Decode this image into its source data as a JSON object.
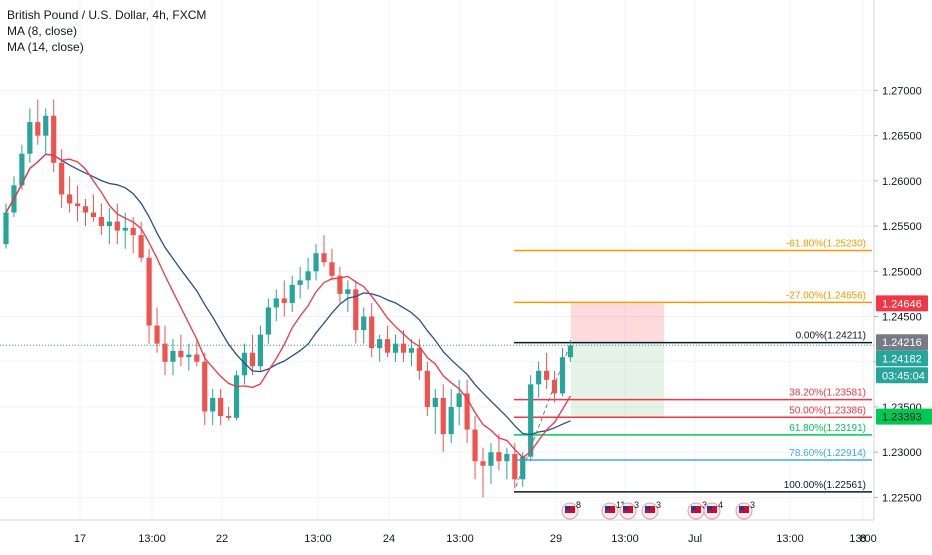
{
  "chart_data": {
    "type": "candlestick",
    "title": "British Pound / U.S. Dollar, 4h, FXCM",
    "indicators": [
      {
        "name": "MA (8, close)",
        "color": "#f23645"
      },
      {
        "name": "MA (14, close)",
        "color": "#2a4d8f"
      }
    ],
    "ylim": [
      1.2225,
      1.28
    ],
    "y_ticks": [
      "1.27000",
      "1.26500",
      "1.26000",
      "1.25500",
      "1.25000",
      "1.24500",
      "1.24000",
      "1.23500",
      "1.23000",
      "1.22500"
    ],
    "x_ticks": [
      "17",
      "13:00",
      "22",
      "13:00",
      "24",
      "13:00",
      "29",
      "13:00",
      "Jul",
      "13:00",
      "6",
      "8",
      "13:00"
    ],
    "colors": {
      "up": "#26a69a",
      "down": "#ef5350",
      "ma_fast": "#f23645",
      "ma_slow": "#2a4d8f",
      "grid": "#f0f3fa",
      "axis_text": "#131722"
    },
    "price_tags": [
      {
        "label": "1.24646",
        "bg": "#f23645",
        "fg": "#ffffff"
      },
      {
        "label": "1.24216",
        "bg": "#787b86",
        "fg": "#ffffff"
      },
      {
        "label": "1.24182",
        "bg": "#26a69a",
        "fg": "#ffffff"
      },
      {
        "label": "03:45:04",
        "bg": "#26a69a",
        "fg": "#ffffff"
      },
      {
        "label": "1.23393",
        "bg": "#00c853",
        "fg": "#131722"
      }
    ],
    "fib_levels": [
      {
        "label": "-61.80%(1.25230)",
        "price": 1.2523,
        "color": "#ff9800"
      },
      {
        "label": "-27.00%(1.24656)",
        "price": 1.24656,
        "color": "#ff9800"
      },
      {
        "label": "0.00%(1.24211)",
        "price": 1.24211,
        "color": "#131722"
      },
      {
        "label": "38.20%(1.23581)",
        "price": 1.23581,
        "color": "#f23645"
      },
      {
        "label": "50.00%(1.23386)",
        "price": 1.23386,
        "color": "#f23645"
      },
      {
        "label": "61.80%(1.23191)",
        "price": 1.23191,
        "color": "#00c853"
      },
      {
        "label": "78.60%(1.22914)",
        "price": 1.22914,
        "color": "#42a5f5"
      },
      {
        "label": "100.00%(1.22561)",
        "price": 1.22561,
        "color": "#131722"
      }
    ],
    "last_price": 1.24182,
    "position": {
      "entry": 1.24211,
      "target": 1.24646,
      "stop": 1.23393
    },
    "events": [
      {
        "count": "8"
      },
      {
        "count": "11"
      },
      {
        "count": "3"
      },
      {
        "count": "3"
      },
      {
        "count": "3"
      },
      {
        "count": "4"
      },
      {
        "count": "3"
      }
    ],
    "candles": [
      [
        1.253,
        1.2575,
        1.2525,
        1.2565
      ],
      [
        1.2565,
        1.2605,
        1.256,
        1.2595
      ],
      [
        1.2595,
        1.264,
        1.259,
        1.263
      ],
      [
        1.263,
        1.268,
        1.262,
        1.2665
      ],
      [
        1.2665,
        1.269,
        1.264,
        1.265
      ],
      [
        1.265,
        1.268,
        1.263,
        1.2672
      ],
      [
        1.2672,
        1.269,
        1.261,
        1.262
      ],
      [
        1.262,
        1.2635,
        1.257,
        1.2585
      ],
      [
        1.2585,
        1.2605,
        1.2565,
        1.2575
      ],
      [
        1.2575,
        1.2595,
        1.2555,
        1.2572
      ],
      [
        1.2572,
        1.258,
        1.255,
        1.2565
      ],
      [
        1.2565,
        1.2585,
        1.2555,
        1.256
      ],
      [
        1.256,
        1.2575,
        1.254,
        1.255
      ],
      [
        1.255,
        1.257,
        1.253,
        1.2555
      ],
      [
        1.2555,
        1.2575,
        1.253,
        1.2545
      ],
      [
        1.2545,
        1.2565,
        1.2525,
        1.2548
      ],
      [
        1.2548,
        1.256,
        1.252,
        1.254
      ],
      [
        1.254,
        1.2555,
        1.251,
        1.2515
      ],
      [
        1.2515,
        1.2525,
        1.242,
        1.244
      ],
      [
        1.244,
        1.246,
        1.241,
        1.242
      ],
      [
        1.242,
        1.244,
        1.2385,
        1.24
      ],
      [
        1.24,
        1.2425,
        1.2385,
        1.2412
      ],
      [
        1.2412,
        1.243,
        1.2395,
        1.2405
      ],
      [
        1.2405,
        1.242,
        1.239,
        1.2408
      ],
      [
        1.2408,
        1.2425,
        1.2395,
        1.24
      ],
      [
        1.24,
        1.241,
        1.233,
        1.2345
      ],
      [
        1.2345,
        1.237,
        1.233,
        1.236
      ],
      [
        1.236,
        1.237,
        1.233,
        1.234
      ],
      [
        1.234,
        1.235,
        1.2335,
        1.2338
      ],
      [
        1.2338,
        1.239,
        1.2335,
        1.2385
      ],
      [
        1.2385,
        1.242,
        1.2375,
        1.241
      ],
      [
        1.241,
        1.243,
        1.2385,
        1.2395
      ],
      [
        1.2395,
        1.244,
        1.239,
        1.243
      ],
      [
        1.243,
        1.247,
        1.242,
        1.246
      ],
      [
        1.246,
        1.248,
        1.2445,
        1.247
      ],
      [
        1.247,
        1.249,
        1.245,
        1.2465
      ],
      [
        1.2465,
        1.2495,
        1.2455,
        1.2485
      ],
      [
        1.2485,
        1.2505,
        1.247,
        1.249
      ],
      [
        1.249,
        1.2515,
        1.248,
        1.25
      ],
      [
        1.25,
        1.253,
        1.249,
        1.252
      ],
      [
        1.252,
        1.254,
        1.2505,
        1.251
      ],
      [
        1.251,
        1.2525,
        1.249,
        1.2495
      ],
      [
        1.2495,
        1.2505,
        1.2465,
        1.2475
      ],
      [
        1.2475,
        1.249,
        1.2455,
        1.248
      ],
      [
        1.248,
        1.249,
        1.242,
        1.2435
      ],
      [
        1.2435,
        1.246,
        1.242,
        1.245
      ],
      [
        1.245,
        1.2465,
        1.2405,
        1.2415
      ],
      [
        1.2415,
        1.243,
        1.24,
        1.2425
      ],
      [
        1.2425,
        1.244,
        1.2405,
        1.241
      ],
      [
        1.241,
        1.243,
        1.24,
        1.242
      ],
      [
        1.242,
        1.2435,
        1.24,
        1.241
      ],
      [
        1.241,
        1.2425,
        1.2395,
        1.2415
      ],
      [
        1.2415,
        1.2425,
        1.238,
        1.239
      ],
      [
        1.239,
        1.24,
        1.234,
        1.235
      ],
      [
        1.235,
        1.237,
        1.232,
        1.236
      ],
      [
        1.236,
        1.2375,
        1.23,
        1.232
      ],
      [
        1.232,
        1.237,
        1.231,
        1.235
      ],
      [
        1.235,
        1.238,
        1.233,
        1.2365
      ],
      [
        1.2365,
        1.238,
        1.231,
        1.2325
      ],
      [
        1.2325,
        1.234,
        1.227,
        1.229
      ],
      [
        1.229,
        1.2305,
        1.225,
        1.2285
      ],
      [
        1.2285,
        1.231,
        1.2265,
        1.23
      ],
      [
        1.23,
        1.232,
        1.228,
        1.229
      ],
      [
        1.229,
        1.2305,
        1.227,
        1.2298
      ],
      [
        1.2298,
        1.231,
        1.226,
        1.227
      ],
      [
        1.227,
        1.23,
        1.2262,
        1.2295
      ],
      [
        1.2295,
        1.2385,
        1.229,
        1.2375
      ],
      [
        1.2375,
        1.24,
        1.236,
        1.239
      ],
      [
        1.239,
        1.241,
        1.237,
        1.238
      ],
      [
        1.238,
        1.239,
        1.2355,
        1.2365
      ],
      [
        1.2365,
        1.2415,
        1.2362,
        1.2405
      ],
      [
        1.2405,
        1.2424,
        1.24,
        1.2418
      ]
    ]
  }
}
